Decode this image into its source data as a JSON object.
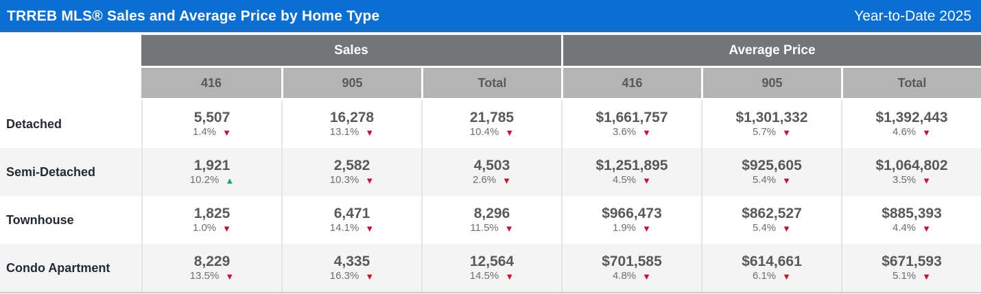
{
  "header": {
    "title": "TRREB MLS® Sales and Average Price by Home Type",
    "period": "Year-to-Date 2025"
  },
  "colors": {
    "title_bar_blue": "#0a6ed2",
    "group_header_gray": "#727679",
    "subheader_gray": "#b4b4b4",
    "value_text_gray": "#58595b",
    "percent_text_gray": "#6d6e71",
    "row_label_dark": "#242a33",
    "alt_row_bg": "#f4f4f4",
    "trend_down_red": "#c8102e",
    "trend_up_green": "#18a85a"
  },
  "icons": {
    "down": "down-triangle",
    "up": "up-triangle"
  },
  "chart_data": {
    "type": "table",
    "title": "TRREB MLS® Sales and Average Price by Home Type",
    "subtitle": "Year-to-Date 2025",
    "column_groups": [
      "Sales",
      "Average Price"
    ],
    "sub_columns": [
      "416",
      "905",
      "Total"
    ],
    "columns": [
      "Sales 416",
      "Sales 905",
      "Sales Total",
      "Average Price 416",
      "Average Price 905",
      "Average Price Total"
    ],
    "change_note": "percent values are year-over-year change; direction down = decline (red), up = increase (green)",
    "rows": [
      {
        "label": "Detached",
        "cells": [
          {
            "value": "5,507",
            "change": "1.4%",
            "direction": "down"
          },
          {
            "value": "16,278",
            "change": "13.1%",
            "direction": "down"
          },
          {
            "value": "21,785",
            "change": "10.4%",
            "direction": "down"
          },
          {
            "value": "$1,661,757",
            "change": "3.6%",
            "direction": "down"
          },
          {
            "value": "$1,301,332",
            "change": "5.7%",
            "direction": "down"
          },
          {
            "value": "$1,392,443",
            "change": "4.6%",
            "direction": "down"
          }
        ]
      },
      {
        "label": "Semi-Detached",
        "cells": [
          {
            "value": "1,921",
            "change": "10.2%",
            "direction": "up"
          },
          {
            "value": "2,582",
            "change": "10.3%",
            "direction": "down"
          },
          {
            "value": "4,503",
            "change": "2.6%",
            "direction": "down"
          },
          {
            "value": "$1,251,895",
            "change": "4.5%",
            "direction": "down"
          },
          {
            "value": "$925,605",
            "change": "5.4%",
            "direction": "down"
          },
          {
            "value": "$1,064,802",
            "change": "3.5%",
            "direction": "down"
          }
        ]
      },
      {
        "label": "Townhouse",
        "cells": [
          {
            "value": "1,825",
            "change": "1.0%",
            "direction": "down"
          },
          {
            "value": "6,471",
            "change": "14.1%",
            "direction": "down"
          },
          {
            "value": "8,296",
            "change": "11.5%",
            "direction": "down"
          },
          {
            "value": "$966,473",
            "change": "1.9%",
            "direction": "down"
          },
          {
            "value": "$862,527",
            "change": "5.4%",
            "direction": "down"
          },
          {
            "value": "$885,393",
            "change": "4.4%",
            "direction": "down"
          }
        ]
      },
      {
        "label": "Condo Apartment",
        "cells": [
          {
            "value": "8,229",
            "change": "13.5%",
            "direction": "down"
          },
          {
            "value": "4,335",
            "change": "16.3%",
            "direction": "down"
          },
          {
            "value": "12,564",
            "change": "14.5%",
            "direction": "down"
          },
          {
            "value": "$701,585",
            "change": "4.8%",
            "direction": "down"
          },
          {
            "value": "$614,661",
            "change": "6.1%",
            "direction": "down"
          },
          {
            "value": "$671,593",
            "change": "5.1%",
            "direction": "down"
          }
        ]
      }
    ]
  }
}
